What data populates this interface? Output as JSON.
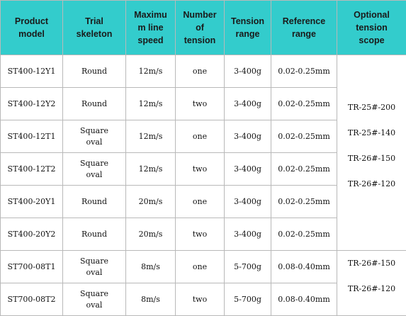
{
  "header": [
    "Product\nmodel",
    "Trial\nskeleton",
    "Maximu\nm line\nspeed",
    "Number\nof\ntension",
    "Tension\nrange",
    "Reference\nrange",
    "Optional\ntension\nscope"
  ],
  "rows": [
    {
      "model": "ST400-12Y1",
      "skeleton": "Round",
      "speed": "12m/s",
      "count": "one",
      "tension": "3-400g",
      "reference": "0.02-0.25mm"
    },
    {
      "model": "ST400-12Y2",
      "skeleton": "Round",
      "speed": "12m/s",
      "count": "two",
      "tension": "3-400g",
      "reference": "0.02-0.25mm"
    },
    {
      "model": "ST400-12T1",
      "skeleton": "Square\noval",
      "speed": "12m/s",
      "count": "one",
      "tension": "3-400g",
      "reference": "0.02-0.25mm"
    },
    {
      "model": "ST400-12T2",
      "skeleton": "Square\noval",
      "speed": "12m/s",
      "count": "two",
      "tension": "3-400g",
      "reference": "0.02-0.25mm"
    },
    {
      "model": "ST400-20Y1",
      "skeleton": "Round",
      "speed": "20m/s",
      "count": "one",
      "tension": "3-400g",
      "reference": "0.02-0.25mm"
    },
    {
      "model": "ST400-20Y2",
      "skeleton": "Round",
      "speed": "20m/s",
      "count": "two",
      "tension": "3-400g",
      "reference": "0.02-0.25mm"
    },
    {
      "model": "ST700-08T1",
      "skeleton": "Square\noval",
      "speed": "8m/s",
      "count": "one",
      "tension": "5-700g",
      "reference": "0.08-0.40mm"
    },
    {
      "model": "ST700-08T2",
      "skeleton": "Square\noval",
      "speed": "8m/s",
      "count": "two",
      "tension": "5-700g",
      "reference": "0.08-0.40mm"
    }
  ],
  "optional_groups": [
    {
      "rowspan": 6,
      "items": [
        "TR-25#-200",
        "TR-25#-140",
        "TR-26#-150",
        "TR-26#-120"
      ]
    },
    {
      "rowspan": 2,
      "items": [
        "TR-26#-150",
        "TR-26#-120"
      ]
    }
  ],
  "colors": {
    "header_bg": "#33cccc",
    "border": "#b9b9b9",
    "text": "#111111"
  }
}
